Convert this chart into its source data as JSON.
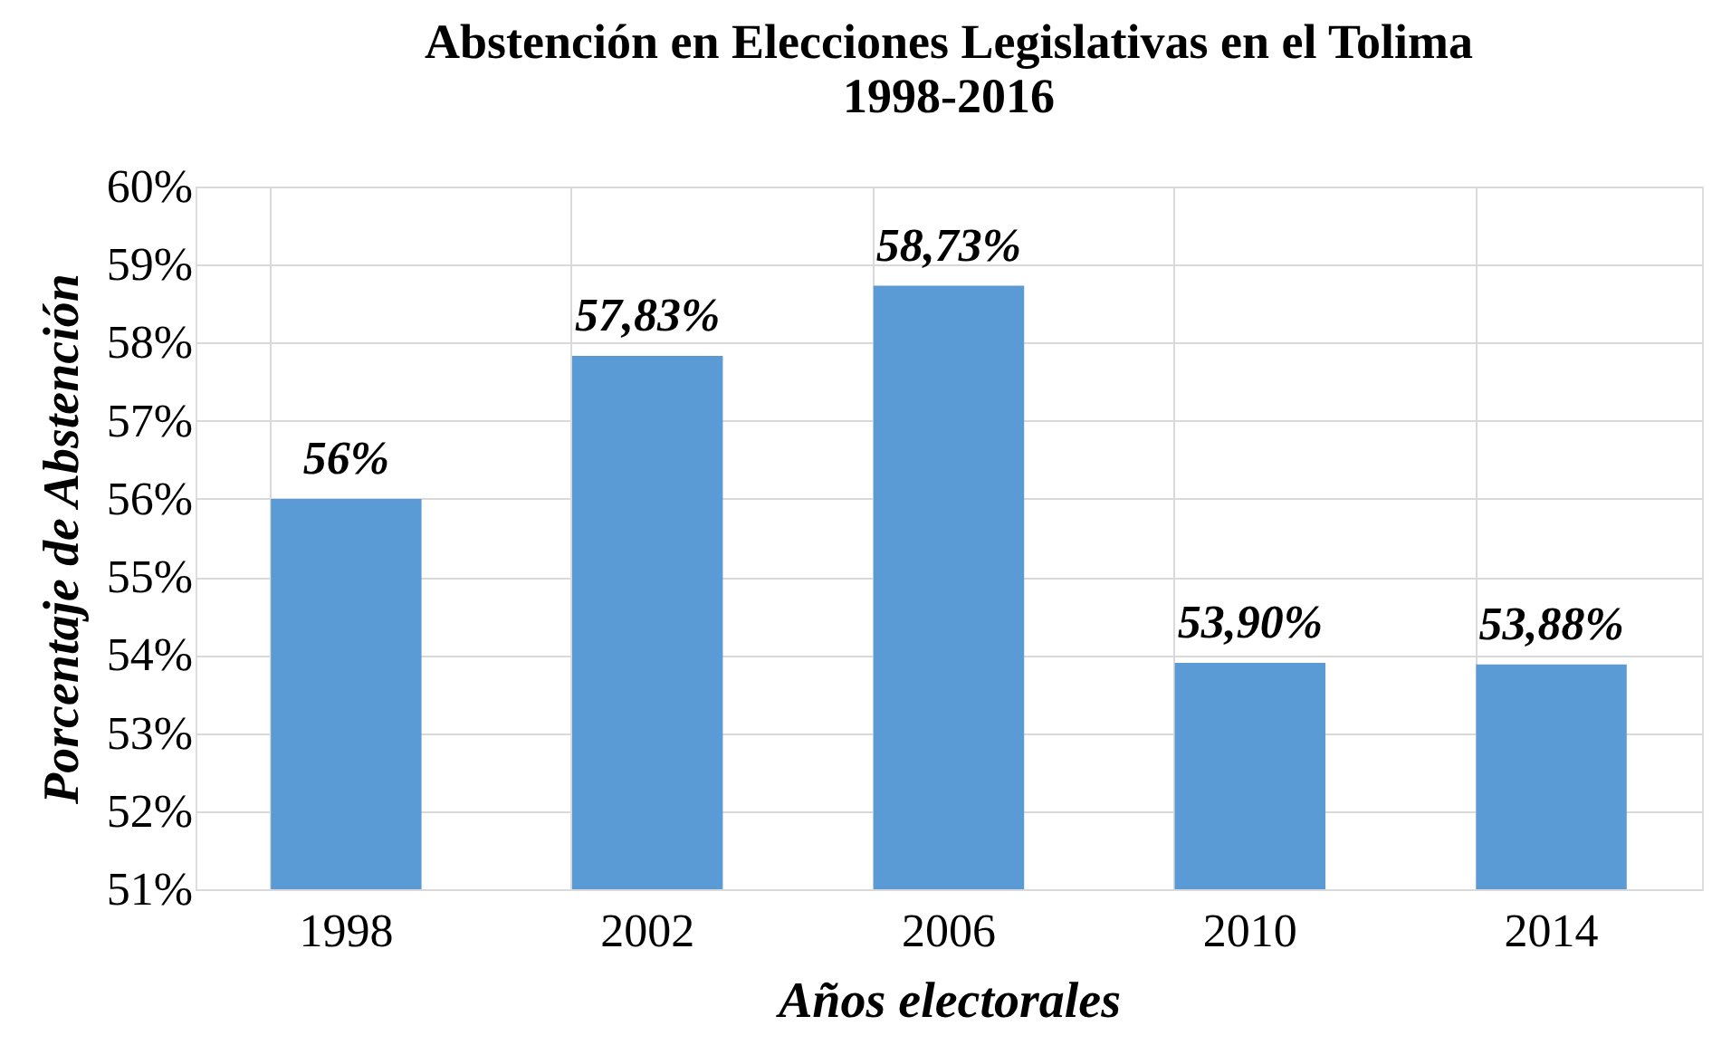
{
  "chart_data": {
    "type": "bar",
    "title": "Abstención en Elecciones Legislativas en el Tolima",
    "subtitle": "1998-2016",
    "xlabel": "Años electorales",
    "ylabel": "Porcentaje de Abstención",
    "categories": [
      "1998",
      "2002",
      "2006",
      "2010",
      "2014"
    ],
    "values": [
      56,
      57.83,
      58.73,
      53.9,
      53.88
    ],
    "value_labels": [
      "56%",
      "57,83%",
      "58,73%",
      "53,90%",
      "53,88%"
    ],
    "color": "#5b9bd5",
    "ylim": [
      51,
      60
    ],
    "yticks": [
      {
        "value": 51,
        "label": "51%"
      },
      {
        "value": 52,
        "label": "52%"
      },
      {
        "value": 53,
        "label": "53%"
      },
      {
        "value": 54,
        "label": "54%"
      },
      {
        "value": 55,
        "label": "55%"
      },
      {
        "value": 56,
        "label": "56%"
      },
      {
        "value": 57,
        "label": "57%"
      },
      {
        "value": 58,
        "label": "58%"
      },
      {
        "value": 59,
        "label": "59%"
      },
      {
        "value": 60,
        "label": "60%"
      }
    ],
    "grid": true
  }
}
